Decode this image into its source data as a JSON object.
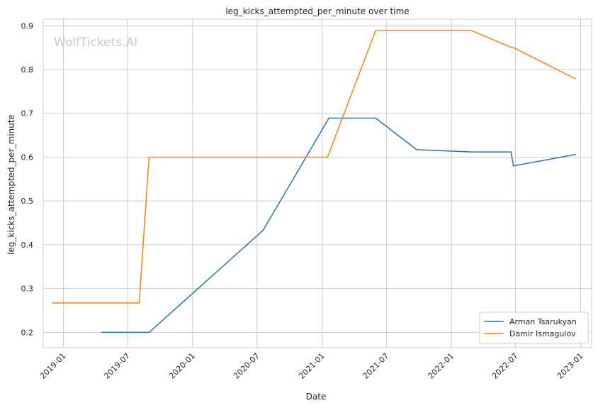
{
  "chart_data": {
    "type": "line",
    "title": "leg_kicks_attempted_per_minute over time",
    "xlabel": "Date",
    "ylabel": "leg_kicks_attempted_per_minute",
    "watermark": "WolfTickets.AI",
    "x_ticks": [
      "2019-01",
      "2019-07",
      "2020-01",
      "2020-07",
      "2021-01",
      "2021-07",
      "2022-01",
      "2022-07",
      "2023-01"
    ],
    "y_ticks": [
      "0.2",
      "0.3",
      "0.4",
      "0.5",
      "0.6",
      "0.7",
      "0.8",
      "0.9"
    ],
    "xlim": [
      "2018-11-05",
      "2023-02-01"
    ],
    "ylim": [
      0.165,
      0.915
    ],
    "grid": true,
    "legend_position": "lower-right",
    "series": [
      {
        "name": "Arman Tsarukyan",
        "color": "#1f77b4",
        "points": [
          {
            "x": "2019-04-20",
            "y": 0.2
          },
          {
            "x": "2019-08-31",
            "y": 0.2
          },
          {
            "x": "2020-07-18",
            "y": 0.433
          },
          {
            "x": "2021-01-20",
            "y": 0.689
          },
          {
            "x": "2021-06-01",
            "y": 0.689
          },
          {
            "x": "2021-09-25",
            "y": 0.617
          },
          {
            "x": "2022-02-26",
            "y": 0.612
          },
          {
            "x": "2022-06-18",
            "y": 0.612
          },
          {
            "x": "2022-06-25",
            "y": 0.58
          },
          {
            "x": "2022-12-17",
            "y": 0.606
          }
        ]
      },
      {
        "name": "Damir Ismagulov",
        "color": "#ff7f0e",
        "points": [
          {
            "x": "2018-12-02",
            "y": 0.267
          },
          {
            "x": "2019-08-03",
            "y": 0.267
          },
          {
            "x": "2019-08-31",
            "y": 0.6
          },
          {
            "x": "2021-01-16",
            "y": 0.6
          },
          {
            "x": "2021-06-01",
            "y": 0.889
          },
          {
            "x": "2022-02-26",
            "y": 0.889
          },
          {
            "x": "2022-06-18",
            "y": 0.851
          },
          {
            "x": "2022-06-25",
            "y": 0.85
          },
          {
            "x": "2022-12-17",
            "y": 0.779
          }
        ]
      }
    ]
  }
}
